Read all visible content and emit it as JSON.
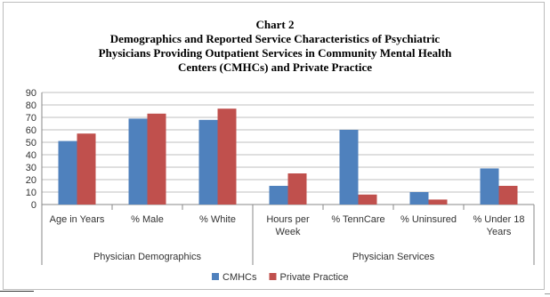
{
  "chart_data": {
    "type": "bar",
    "title_lines": [
      "Chart 2",
      "Demographics and Reported Service Characteristics of Psychiatric",
      "Physicians Providing Outpatient Services in Community Mental Health",
      "Centers (CMHCs) and Private Practice"
    ],
    "categories": [
      [
        "Age in Years"
      ],
      [
        "% Male"
      ],
      [
        "% White"
      ],
      [
        "Hours per",
        "Week"
      ],
      [
        "% TennCare"
      ],
      [
        "% Uninsured"
      ],
      [
        "% Under 18",
        "Years"
      ]
    ],
    "groups": [
      {
        "label": "Physician Demographics",
        "categories": [
          0,
          1,
          2
        ]
      },
      {
        "label": "Physician Services",
        "categories": [
          3,
          4,
          5,
          6
        ]
      }
    ],
    "series": [
      {
        "name": "CMHCs",
        "color": "#4f81bd",
        "values": [
          51,
          69,
          68,
          15,
          60,
          10,
          29
        ]
      },
      {
        "name": "Private Practice",
        "color": "#c0504d",
        "values": [
          57,
          73,
          77,
          25,
          8,
          4,
          15
        ]
      }
    ],
    "ylim": [
      0,
      90
    ],
    "yticks": [
      0,
      10,
      20,
      30,
      40,
      50,
      60,
      70,
      80,
      90
    ],
    "grid": true,
    "legend_position": "bottom"
  }
}
